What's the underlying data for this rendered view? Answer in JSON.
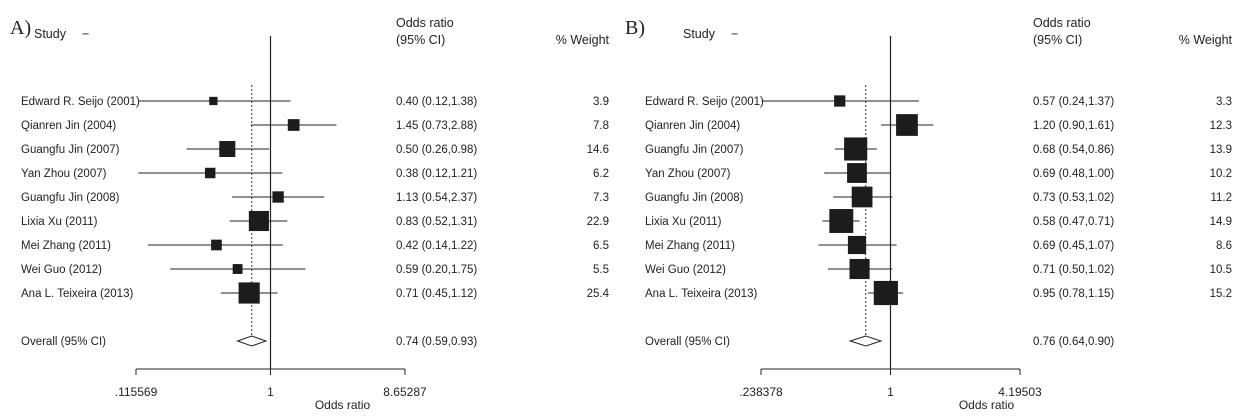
{
  "chart_data": [
    {
      "type": "forest",
      "panel_label": "A)",
      "headers": {
        "study": "Study",
        "study_mark": "−",
        "or_line1": "Odds ratio",
        "or_line2": "(95% CI)",
        "weight": "% Weight"
      },
      "xlabel": "Odds ratio",
      "xscale": "log",
      "xlim": [
        0.115569,
        8.65287
      ],
      "xticks": [
        ".115569",
        "1",
        "8.65287"
      ],
      "null_line": 1,
      "pooled_reference_line": 0.74,
      "studies": [
        {
          "name": "Edward R. Seijo (2001)",
          "or": 0.4,
          "lo": 0.12,
          "hi": 1.38,
          "ci_text": "0.40 (0.12,1.38)",
          "weight": 3.9,
          "weight_text": "3.9"
        },
        {
          "name": "Qianren Jin (2004)",
          "or": 1.45,
          "lo": 0.73,
          "hi": 2.88,
          "ci_text": "1.45 (0.73,2.88)",
          "weight": 7.8,
          "weight_text": "7.8"
        },
        {
          "name": "Guangfu Jin (2007)",
          "or": 0.5,
          "lo": 0.26,
          "hi": 0.98,
          "ci_text": "0.50 (0.26,0.98)",
          "weight": 14.6,
          "weight_text": "14.6"
        },
        {
          "name": "Yan Zhou (2007)",
          "or": 0.38,
          "lo": 0.12,
          "hi": 1.21,
          "ci_text": "0.38 (0.12,1.21)",
          "weight": 6.2,
          "weight_text": "6.2"
        },
        {
          "name": "Guangfu Jin (2008)",
          "or": 1.13,
          "lo": 0.54,
          "hi": 2.37,
          "ci_text": "1.13 (0.54,2.37)",
          "weight": 7.3,
          "weight_text": "7.3"
        },
        {
          "name": "Lixia Xu (2011)",
          "or": 0.83,
          "lo": 0.52,
          "hi": 1.31,
          "ci_text": "0.83 (0.52,1.31)",
          "weight": 22.9,
          "weight_text": "22.9"
        },
        {
          "name": "Mei Zhang (2011)",
          "or": 0.42,
          "lo": 0.14,
          "hi": 1.22,
          "ci_text": "0.42 (0.14,1.22)",
          "weight": 6.5,
          "weight_text": "6.5"
        },
        {
          "name": "Wei Guo (2012)",
          "or": 0.59,
          "lo": 0.2,
          "hi": 1.75,
          "ci_text": "0.59 (0.20,1.75)",
          "weight": 5.5,
          "weight_text": "5.5"
        },
        {
          "name": "Ana L. Teixeira (2013)",
          "or": 0.71,
          "lo": 0.45,
          "hi": 1.12,
          "ci_text": "0.71 (0.45,1.12)",
          "weight": 25.4,
          "weight_text": "25.4"
        }
      ],
      "overall": {
        "name": "Overall (95% CI)",
        "or": 0.74,
        "lo": 0.59,
        "hi": 0.93,
        "ci_text": "0.74 (0.59,0.93)"
      }
    },
    {
      "type": "forest",
      "panel_label": "B)",
      "headers": {
        "study": "Study",
        "study_mark": "−",
        "or_line1": "Odds ratio",
        "or_line2": "(95% CI)",
        "weight": "% Weight"
      },
      "xlabel": "Odds ratio",
      "xscale": "log",
      "xlim": [
        0.238378,
        4.19503
      ],
      "xticks": [
        ".238378",
        "1",
        "4.19503"
      ],
      "null_line": 1,
      "pooled_reference_line": 0.76,
      "studies": [
        {
          "name": "Edward R. Seijo (2001)",
          "or": 0.57,
          "lo": 0.24,
          "hi": 1.37,
          "ci_text": "0.57 (0.24,1.37)",
          "weight": 3.3,
          "weight_text": "3.3"
        },
        {
          "name": "Qianren Jin (2004)",
          "or": 1.2,
          "lo": 0.9,
          "hi": 1.61,
          "ci_text": "1.20 (0.90,1.61)",
          "weight": 12.3,
          "weight_text": "12.3"
        },
        {
          "name": "Guangfu Jin (2007)",
          "or": 0.68,
          "lo": 0.54,
          "hi": 0.86,
          "ci_text": "0.68 (0.54,0.86)",
          "weight": 13.9,
          "weight_text": "13.9"
        },
        {
          "name": "Yan Zhou (2007)",
          "or": 0.69,
          "lo": 0.48,
          "hi": 1.0,
          "ci_text": "0.69 (0.48,1.00)",
          "weight": 10.2,
          "weight_text": "10.2"
        },
        {
          "name": "Guangfu Jin (2008)",
          "or": 0.73,
          "lo": 0.53,
          "hi": 1.02,
          "ci_text": "0.73 (0.53,1.02)",
          "weight": 11.2,
          "weight_text": "11.2"
        },
        {
          "name": "Lixia Xu (2011)",
          "or": 0.58,
          "lo": 0.47,
          "hi": 0.71,
          "ci_text": "0.58 (0.47,0.71)",
          "weight": 14.9,
          "weight_text": "14.9"
        },
        {
          "name": "Mei Zhang (2011)",
          "or": 0.69,
          "lo": 0.45,
          "hi": 1.07,
          "ci_text": "0.69 (0.45,1.07)",
          "weight": 8.6,
          "weight_text": "8.6"
        },
        {
          "name": "Wei Guo (2012)",
          "or": 0.71,
          "lo": 0.5,
          "hi": 1.02,
          "ci_text": "0.71 (0.50,1.02)",
          "weight": 10.5,
          "weight_text": "10.5"
        },
        {
          "name": "Ana L. Teixeira (2013)",
          "or": 0.95,
          "lo": 0.78,
          "hi": 1.15,
          "ci_text": "0.95 (0.78,1.15)",
          "weight": 15.2,
          "weight_text": "15.2"
        }
      ],
      "overall": {
        "name": "Overall (95% CI)",
        "or": 0.76,
        "lo": 0.64,
        "hi": 0.9,
        "ci_text": "0.76 (0.64,0.90)"
      }
    }
  ]
}
